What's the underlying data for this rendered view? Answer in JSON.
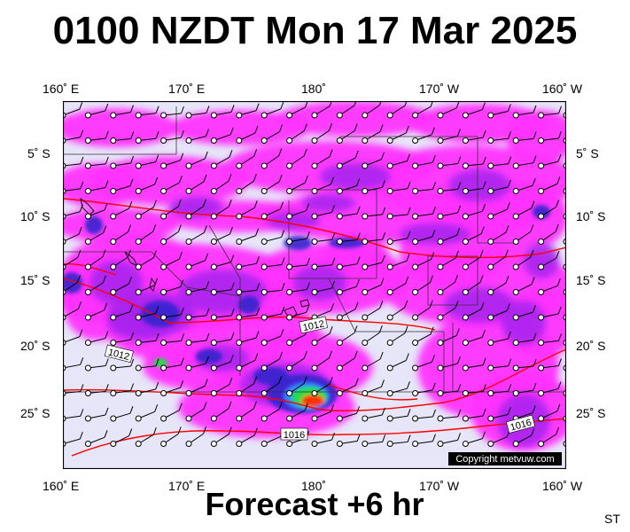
{
  "title": "0100 NZDT Mon 17 Mar 2025",
  "forecast_label": "Forecast +6 hr",
  "init_label": "ST",
  "copyright": "Copyright metvuw.com",
  "longitude_labels": [
    "160˚ E",
    "170˚ E",
    "180˚",
    "170˚ W",
    "160˚ W"
  ],
  "latitude_labels": [
    "5˚ S",
    "10˚ S",
    "15˚ S",
    "20˚ S",
    "25˚ S"
  ],
  "isobar_labels": [
    "1012",
    "1012",
    "1016",
    "1016"
  ],
  "map": {
    "extent": {
      "lon_min": 160,
      "lon_max": 200,
      "lat_min": -29,
      "lat_max": -2
    },
    "colors": {
      "background": "#e6e6f8",
      "rain_light": "#ff33ff",
      "rain_moderate": "#aa22ee",
      "rain_heavy": "#3322cc",
      "rain_very_heavy": "#3388ff",
      "rain_extreme": "#22dd44",
      "rain_peak": "#ff3300",
      "isobar": "#ff0000",
      "land": "#111111"
    }
  }
}
